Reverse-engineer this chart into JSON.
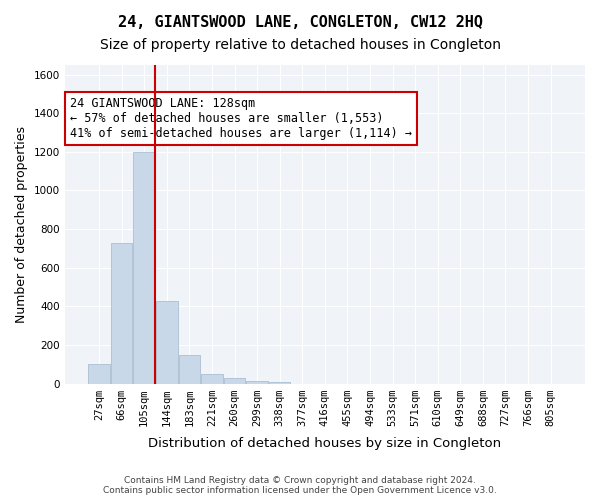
{
  "title": "24, GIANTSWOOD LANE, CONGLETON, CW12 2HQ",
  "subtitle": "Size of property relative to detached houses in Congleton",
  "xlabel": "Distribution of detached houses by size in Congleton",
  "ylabel": "Number of detached properties",
  "footer_line1": "Contains HM Land Registry data © Crown copyright and database right 2024.",
  "footer_line2": "Contains public sector information licensed under the Open Government Licence v3.0.",
  "bar_labels": [
    "27sqm",
    "66sqm",
    "105sqm",
    "144sqm",
    "183sqm",
    "221sqm",
    "260sqm",
    "299sqm",
    "338sqm",
    "377sqm",
    "416sqm",
    "455sqm",
    "494sqm",
    "533sqm",
    "571sqm",
    "610sqm",
    "649sqm",
    "688sqm",
    "727sqm",
    "766sqm",
    "805sqm"
  ],
  "bar_values": [
    100,
    730,
    1200,
    430,
    150,
    50,
    30,
    15,
    10,
    0,
    0,
    0,
    0,
    0,
    0,
    0,
    0,
    0,
    0,
    0,
    0
  ],
  "bar_color": "#c8d8e8",
  "bar_edge_color": "#a0b8cc",
  "vline_x": 2,
  "vline_color": "#cc0000",
  "ylim": [
    0,
    1650
  ],
  "yticks": [
    0,
    200,
    400,
    600,
    800,
    1000,
    1200,
    1400,
    1600
  ],
  "annotation_text": "24 GIANTSWOOD LANE: 128sqm\n← 57% of detached houses are smaller (1,553)\n41% of semi-detached houses are larger (1,114) →",
  "annotation_box_color": "#ffffff",
  "annotation_box_edge": "#cc0000",
  "bg_color": "#f0f4f8",
  "grid_color": "#ffffff",
  "title_fontsize": 11,
  "subtitle_fontsize": 10,
  "annotation_fontsize": 8.5,
  "tick_fontsize": 7.5
}
